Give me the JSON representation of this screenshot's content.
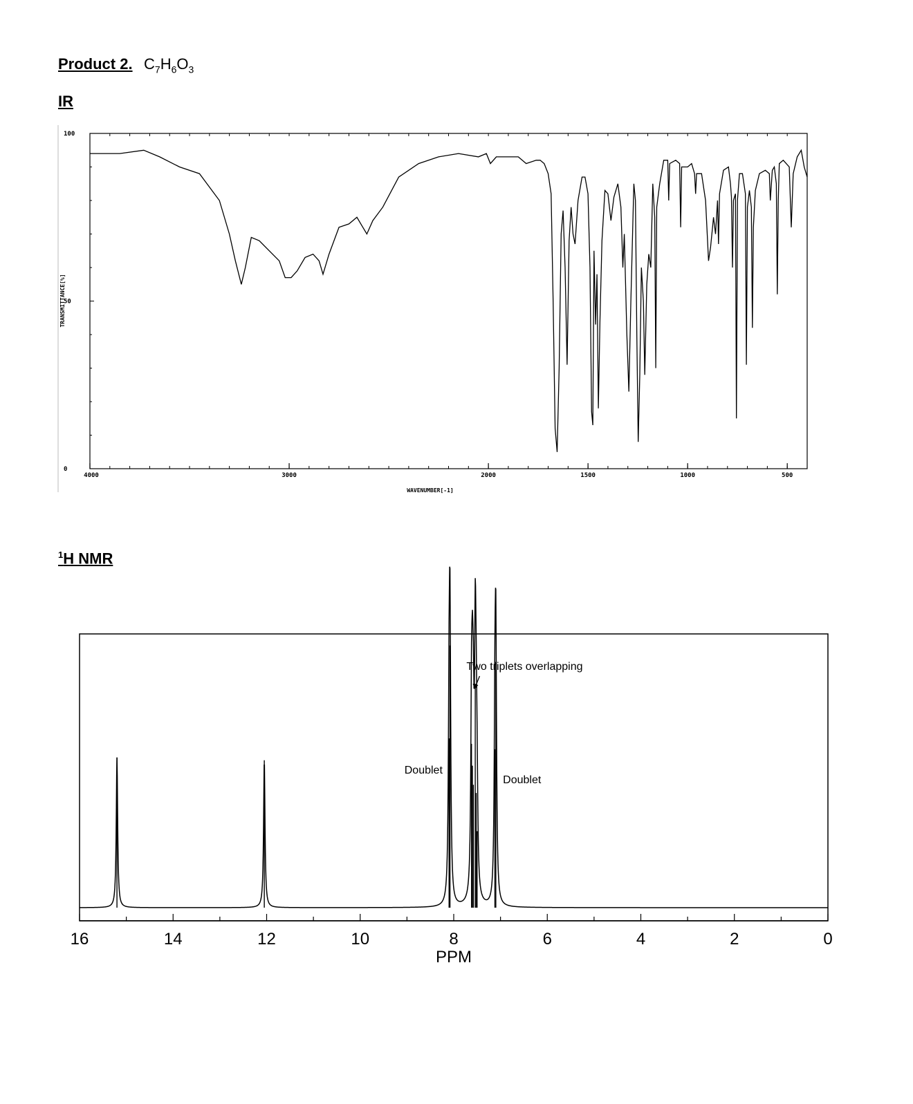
{
  "page": {
    "product_label": "Product 2.",
    "formula": {
      "parts": [
        "C",
        "7",
        "H",
        "6",
        "O",
        "3"
      ]
    },
    "ir_heading": "IR",
    "nmr_heading_sup": "1",
    "nmr_heading": "H NMR"
  },
  "chart_data": [
    {
      "id": "ir",
      "type": "line",
      "xlabel": "WAVENUMBER[-1]",
      "ylabel": "TRANSMITTANCE[%]",
      "xlim": [
        4000,
        400
      ],
      "ylim": [
        0,
        100
      ],
      "x_reversed": true,
      "xticks": [
        4000,
        3000,
        2000,
        1500,
        1000,
        500
      ],
      "yticks": [
        0,
        50,
        100
      ],
      "baseline": 93,
      "points": [
        [
          4000,
          94
        ],
        [
          3850,
          94
        ],
        [
          3730,
          95
        ],
        [
          3650,
          93
        ],
        [
          3550,
          90
        ],
        [
          3450,
          88
        ],
        [
          3350,
          80
        ],
        [
          3300,
          70
        ],
        [
          3270,
          62
        ],
        [
          3240,
          55
        ],
        [
          3220,
          60
        ],
        [
          3190,
          69
        ],
        [
          3150,
          68
        ],
        [
          3100,
          65
        ],
        [
          3050,
          62
        ],
        [
          3020,
          57
        ],
        [
          2990,
          57
        ],
        [
          2960,
          59
        ],
        [
          2920,
          63
        ],
        [
          2880,
          64
        ],
        [
          2850,
          62
        ],
        [
          2830,
          58
        ],
        [
          2800,
          64
        ],
        [
          2750,
          72
        ],
        [
          2700,
          73
        ],
        [
          2660,
          75
        ],
        [
          2630,
          72
        ],
        [
          2610,
          70
        ],
        [
          2580,
          74
        ],
        [
          2530,
          78
        ],
        [
          2450,
          87
        ],
        [
          2350,
          91
        ],
        [
          2250,
          93
        ],
        [
          2150,
          94
        ],
        [
          2050,
          93
        ],
        [
          2010,
          94
        ],
        [
          1990,
          91
        ],
        [
          1960,
          93
        ],
        [
          1900,
          93
        ],
        [
          1850,
          93
        ],
        [
          1810,
          91
        ],
        [
          1760,
          92
        ],
        [
          1740,
          92
        ],
        [
          1720,
          91
        ],
        [
          1700,
          88
        ],
        [
          1685,
          82
        ],
        [
          1675,
          50
        ],
        [
          1665,
          12
        ],
        [
          1655,
          5
        ],
        [
          1645,
          30
        ],
        [
          1635,
          70
        ],
        [
          1625,
          77
        ],
        [
          1615,
          60
        ],
        [
          1605,
          31
        ],
        [
          1595,
          68
        ],
        [
          1585,
          78
        ],
        [
          1575,
          70
        ],
        [
          1565,
          67
        ],
        [
          1550,
          80
        ],
        [
          1530,
          87
        ],
        [
          1515,
          87
        ],
        [
          1500,
          82
        ],
        [
          1490,
          60
        ],
        [
          1482,
          17
        ],
        [
          1476,
          13
        ],
        [
          1470,
          65
        ],
        [
          1462,
          43
        ],
        [
          1455,
          58
        ],
        [
          1448,
          18
        ],
        [
          1440,
          44
        ],
        [
          1430,
          68
        ],
        [
          1415,
          83
        ],
        [
          1400,
          82
        ],
        [
          1385,
          74
        ],
        [
          1370,
          81
        ],
        [
          1350,
          85
        ],
        [
          1335,
          78
        ],
        [
          1325,
          60
        ],
        [
          1318,
          70
        ],
        [
          1305,
          40
        ],
        [
          1295,
          23
        ],
        [
          1285,
          50
        ],
        [
          1270,
          85
        ],
        [
          1262,
          80
        ],
        [
          1255,
          40
        ],
        [
          1248,
          8
        ],
        [
          1240,
          28
        ],
        [
          1232,
          60
        ],
        [
          1222,
          50
        ],
        [
          1215,
          28
        ],
        [
          1205,
          55
        ],
        [
          1195,
          64
        ],
        [
          1185,
          60
        ],
        [
          1175,
          85
        ],
        [
          1165,
          75
        ],
        [
          1160,
          30
        ],
        [
          1155,
          78
        ],
        [
          1140,
          85
        ],
        [
          1120,
          92
        ],
        [
          1100,
          92
        ],
        [
          1095,
          80
        ],
        [
          1090,
          91
        ],
        [
          1060,
          92
        ],
        [
          1040,
          91
        ],
        [
          1035,
          72
        ],
        [
          1030,
          90
        ],
        [
          1000,
          90
        ],
        [
          980,
          91
        ],
        [
          965,
          88
        ],
        [
          960,
          82
        ],
        [
          955,
          88
        ],
        [
          930,
          88
        ],
        [
          910,
          80
        ],
        [
          895,
          62
        ],
        [
          885,
          66
        ],
        [
          870,
          75
        ],
        [
          860,
          70
        ],
        [
          850,
          80
        ],
        [
          845,
          67
        ],
        [
          840,
          82
        ],
        [
          820,
          89
        ],
        [
          795,
          90
        ],
        [
          785,
          85
        ],
        [
          780,
          81
        ],
        [
          775,
          60
        ],
        [
          770,
          80
        ],
        [
          760,
          82
        ],
        [
          755,
          15
        ],
        [
          750,
          80
        ],
        [
          740,
          88
        ],
        [
          725,
          88
        ],
        [
          710,
          82
        ],
        [
          705,
          31
        ],
        [
          700,
          78
        ],
        [
          690,
          83
        ],
        [
          680,
          78
        ],
        [
          675,
          42
        ],
        [
          670,
          72
        ],
        [
          660,
          83
        ],
        [
          640,
          88
        ],
        [
          610,
          89
        ],
        [
          590,
          88
        ],
        [
          585,
          80
        ],
        [
          575,
          89
        ],
        [
          565,
          90
        ],
        [
          555,
          85
        ],
        [
          550,
          52
        ],
        [
          545,
          80
        ],
        [
          540,
          91
        ],
        [
          520,
          92
        ],
        [
          490,
          90
        ],
        [
          480,
          72
        ],
        [
          470,
          88
        ],
        [
          450,
          93
        ],
        [
          430,
          95
        ],
        [
          415,
          90
        ],
        [
          400,
          87
        ]
      ]
    },
    {
      "id": "nmr",
      "type": "line",
      "xlabel": "PPM",
      "xlim": [
        16,
        0
      ],
      "x_reversed": true,
      "xticks": [
        16,
        14,
        12,
        10,
        8,
        6,
        4,
        2,
        0
      ],
      "xminor_step": 1,
      "peaks": [
        {
          "ppm": 15.2,
          "height": 0.55
        },
        {
          "ppm": 12.05,
          "height": 0.54
        },
        {
          "ppm": 8.1,
          "height": 0.62
        },
        {
          "ppm": 8.08,
          "height": 0.96
        },
        {
          "ppm": 7.62,
          "height": 0.6
        },
        {
          "ppm": 7.6,
          "height": 0.52
        },
        {
          "ppm": 7.58,
          "height": 0.45
        },
        {
          "ppm": 7.54,
          "height": 0.82
        },
        {
          "ppm": 7.52,
          "height": 0.42
        },
        {
          "ppm": 7.5,
          "height": 0.28
        },
        {
          "ppm": 7.12,
          "height": 0.58
        },
        {
          "ppm": 7.1,
          "height": 0.9
        }
      ],
      "annotations": [
        {
          "text": "Two triplets overlapping",
          "ppm": 7.55,
          "arrow": true
        },
        {
          "text": "Doublet",
          "ppm": 8.09,
          "side": "left"
        },
        {
          "text": "Doublet",
          "ppm": 7.11,
          "side": "right"
        }
      ]
    }
  ]
}
